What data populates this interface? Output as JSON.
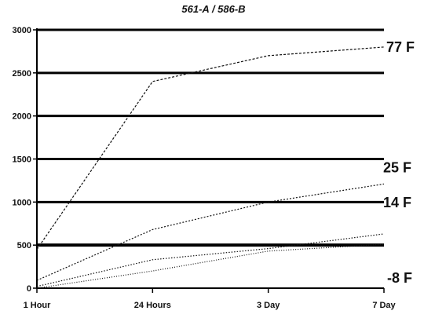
{
  "chart_data": {
    "type": "line",
    "title": "561-A / 586-B",
    "xlabel": "",
    "ylabel": "",
    "categories": [
      "1 Hour",
      "24 Hours",
      "3 Day",
      "7 Day"
    ],
    "ylim": [
      0,
      3000
    ],
    "yticks": [
      0,
      500,
      1000,
      1500,
      2000,
      2500,
      3000
    ],
    "grid": true,
    "series": [
      {
        "name": "77 F",
        "values": [
          450,
          2400,
          2700,
          2800
        ],
        "color": "#111111"
      },
      {
        "name": "25 F",
        "values": [
          90,
          680,
          1000,
          1210
        ],
        "color": "#111111"
      },
      {
        "name": "14 F",
        "values": [
          20,
          330,
          460,
          630
        ],
        "color": "#111111"
      },
      {
        "name": "-8 F",
        "values": [
          0,
          200,
          430,
          510
        ],
        "color": "#111111"
      }
    ]
  }
}
